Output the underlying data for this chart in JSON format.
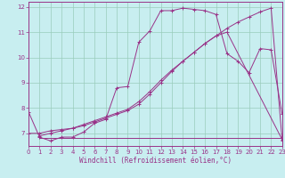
{
  "xlabel": "Windchill (Refroidissement éolien,°C)",
  "xlim": [
    0,
    23
  ],
  "ylim": [
    6.5,
    12.2
  ],
  "yticks": [
    7,
    8,
    9,
    10,
    11,
    12
  ],
  "xticks": [
    0,
    1,
    2,
    3,
    4,
    5,
    6,
    7,
    8,
    9,
    10,
    11,
    12,
    13,
    14,
    15,
    16,
    17,
    18,
    19,
    20,
    21,
    22,
    23
  ],
  "bg_color": "#c8eef0",
  "grid_color": "#99ccbb",
  "line_color": "#993388",
  "series1_x": [
    0,
    1,
    2,
    3,
    4,
    5,
    6,
    7,
    8,
    9,
    10,
    11,
    12,
    13,
    14,
    15,
    16,
    17,
    18,
    19,
    20,
    21,
    22,
    23
  ],
  "series1_y": [
    7.85,
    6.85,
    6.7,
    6.85,
    6.85,
    7.05,
    7.4,
    7.55,
    8.8,
    8.85,
    10.6,
    11.05,
    11.85,
    11.85,
    11.95,
    11.9,
    11.85,
    11.7,
    10.15,
    9.85,
    9.4,
    10.35,
    10.3,
    7.75
  ],
  "series2_x": [
    1,
    2,
    3,
    4,
    5,
    6,
    7,
    8,
    9,
    10,
    11,
    12,
    13,
    14,
    15,
    16,
    17,
    18,
    19,
    20,
    21,
    23
  ],
  "series2_y": [
    6.8,
    6.8,
    6.8,
    6.8,
    6.8,
    6.8,
    6.8,
    6.8,
    6.8,
    6.8,
    6.8,
    6.8,
    6.8,
    6.8,
    6.8,
    6.8,
    6.8,
    6.8,
    6.8,
    6.8,
    6.8,
    6.8
  ],
  "series3_x": [
    0,
    1,
    2,
    3,
    4,
    5,
    6,
    7,
    8,
    9,
    10,
    11,
    12,
    13,
    14,
    15,
    16,
    17,
    18,
    23
  ],
  "series3_y": [
    7.0,
    7.0,
    7.1,
    7.15,
    7.2,
    7.35,
    7.5,
    7.65,
    7.8,
    7.95,
    8.25,
    8.65,
    9.1,
    9.5,
    9.85,
    10.2,
    10.55,
    10.85,
    11.0,
    6.75
  ],
  "series4_x": [
    1,
    2,
    3,
    4,
    5,
    6,
    7,
    8,
    9,
    10,
    11,
    12,
    13,
    14,
    15,
    16,
    17,
    18,
    19,
    20,
    21,
    22,
    23
  ],
  "series4_y": [
    6.9,
    7.0,
    7.1,
    7.2,
    7.3,
    7.45,
    7.6,
    7.75,
    7.9,
    8.15,
    8.55,
    9.0,
    9.45,
    9.85,
    10.2,
    10.55,
    10.85,
    11.15,
    11.4,
    11.6,
    11.8,
    11.95,
    6.72
  ]
}
